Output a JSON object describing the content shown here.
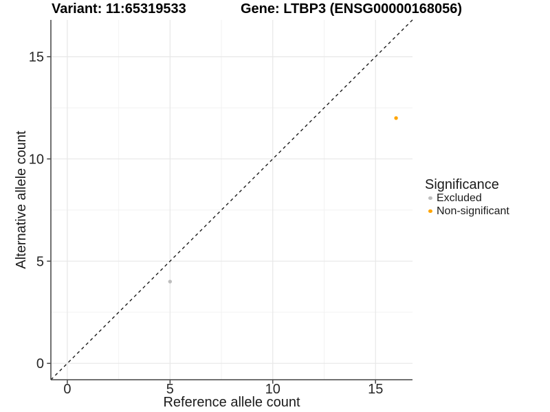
{
  "titles": {
    "variant": "Variant: 11:65319533",
    "gene": "Gene: LTBP3 (ENSG00000168056)"
  },
  "chart_data": {
    "type": "scatter",
    "xlabel": "Reference allele count",
    "ylabel": "Alternative allele count",
    "xlim": [
      -0.8,
      16.8
    ],
    "ylim": [
      -0.8,
      16.8
    ],
    "x_ticks": [
      0,
      5,
      10,
      15
    ],
    "y_ticks": [
      0,
      5,
      10,
      15
    ],
    "x_minor_ticks": [
      2.5,
      7.5,
      12.5
    ],
    "y_minor_ticks": [
      2.5,
      7.5,
      12.5
    ],
    "grid": true,
    "reference_line": {
      "slope": 1,
      "intercept": 0,
      "style": "dashed",
      "color": "#1a1a1a"
    },
    "series": [
      {
        "name": "Excluded",
        "color": "#bebebe",
        "points": [
          {
            "x": 5,
            "y": 4
          }
        ]
      },
      {
        "name": "Non-significant",
        "color": "#ffa500",
        "points": [
          {
            "x": 16,
            "y": 12
          }
        ]
      }
    ],
    "legend": {
      "title": "Significance",
      "position": "right",
      "entries": [
        {
          "label": "Excluded",
          "color": "#bebebe"
        },
        {
          "label": "Non-significant",
          "color": "#ffa500"
        }
      ]
    },
    "style_colors": {
      "axis_line": "#404040",
      "tick_mark": "#333333",
      "tick_label": "#262626",
      "grid_major": "#e7e7e7",
      "grid_minor": "#f2f2f2",
      "background": "#ffffff"
    }
  }
}
